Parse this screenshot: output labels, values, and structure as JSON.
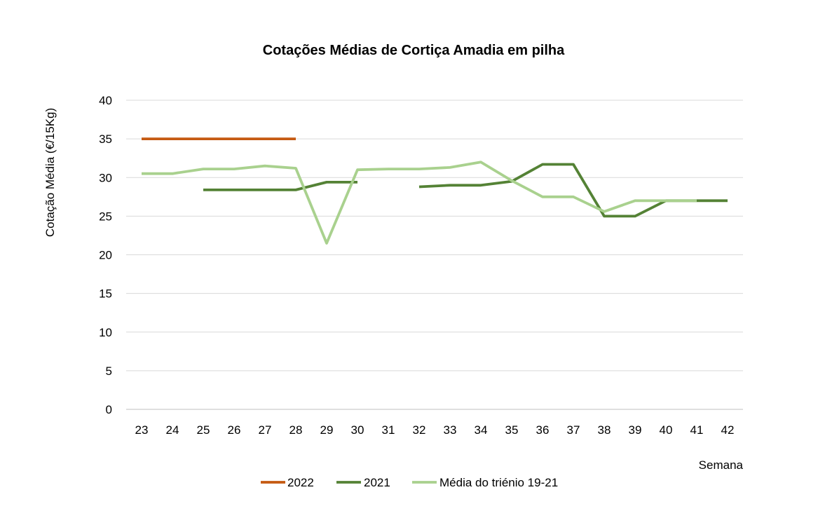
{
  "chart_data": {
    "type": "line",
    "title": "Cotações Médias de Cortiça Amadia em pilha",
    "xlabel": "Semana",
    "ylabel": "Cotação Média (€/15Kg)",
    "categories": [
      "23",
      "24",
      "25",
      "26",
      "27",
      "28",
      "29",
      "30",
      "31",
      "32",
      "33",
      "34",
      "35",
      "36",
      "37",
      "38",
      "39",
      "40",
      "41",
      "42"
    ],
    "ylim": [
      0,
      40
    ],
    "yticks": [
      0,
      5,
      10,
      15,
      20,
      25,
      30,
      35,
      40
    ],
    "grid": true,
    "legend_position": "bottom",
    "series": [
      {
        "name": "2022",
        "color": "#C55A11",
        "values": [
          35,
          35,
          35,
          35,
          35,
          35,
          null,
          null,
          null,
          null,
          null,
          null,
          null,
          null,
          null,
          null,
          null,
          null,
          null,
          null
        ]
      },
      {
        "name": "2021",
        "color": "#548235",
        "values": [
          null,
          null,
          28.4,
          28.4,
          28.4,
          28.4,
          29.4,
          29.4,
          null,
          28.8,
          29.0,
          29.0,
          29.5,
          31.7,
          31.7,
          25.0,
          25.0,
          27.0,
          27.0,
          27.0
        ]
      },
      {
        "name": "Média do triénio 19-21",
        "color": "#A9D18E",
        "values": [
          30.5,
          30.5,
          31.1,
          31.1,
          31.5,
          31.2,
          21.5,
          31.0,
          31.1,
          31.1,
          31.3,
          32.0,
          29.6,
          27.5,
          27.5,
          25.6,
          27.0,
          27.0,
          27.0,
          null
        ]
      }
    ]
  }
}
